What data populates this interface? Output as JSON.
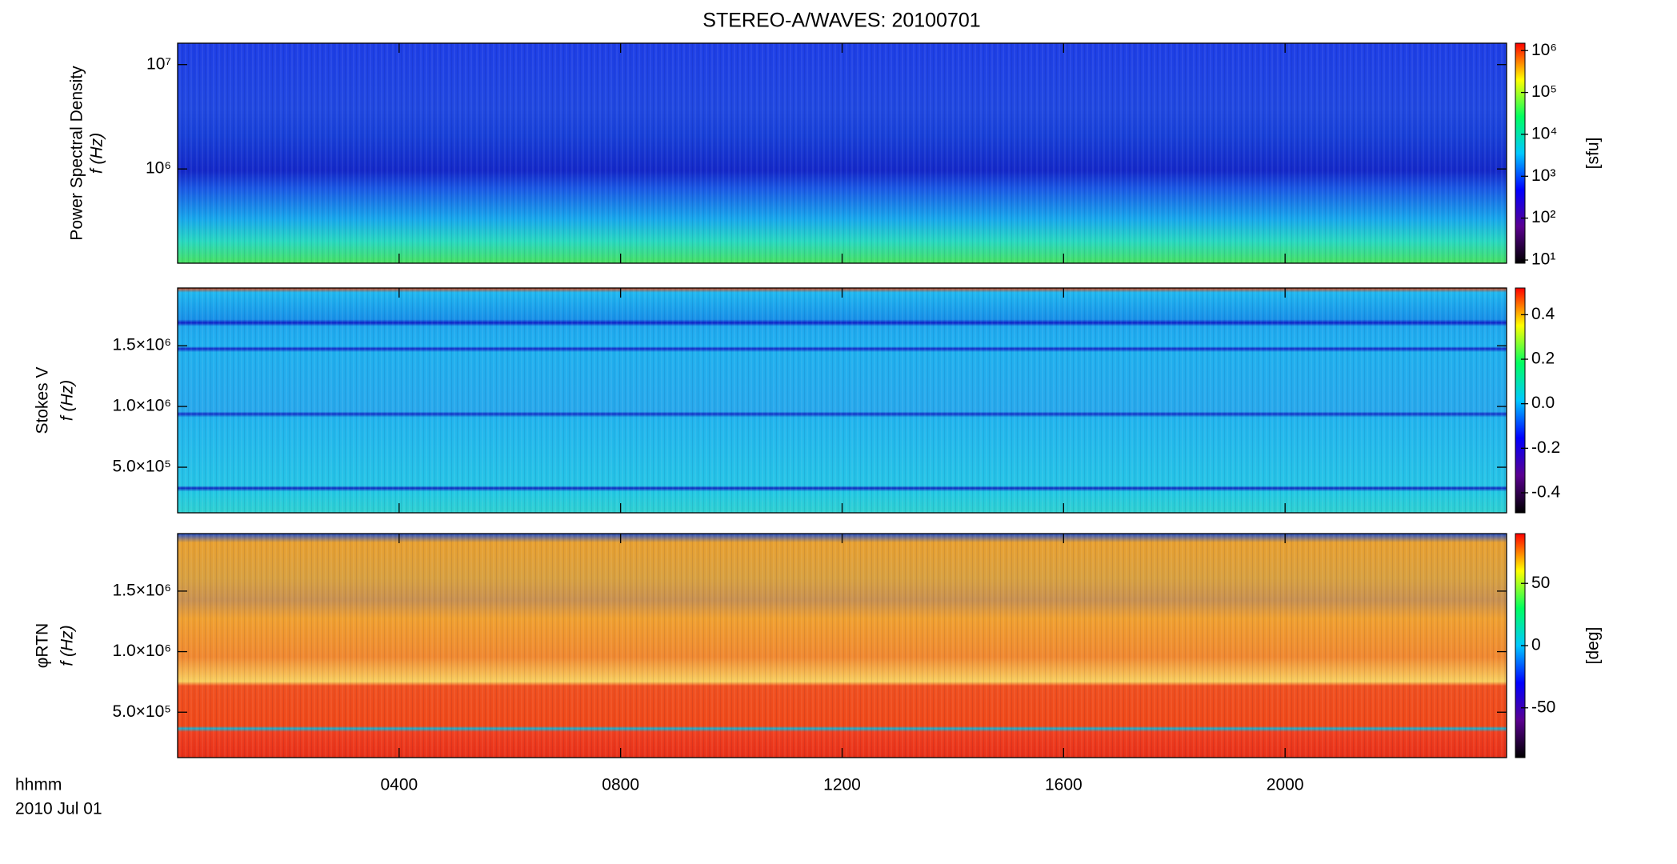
{
  "title": "STEREO-A/WAVES: 20100701",
  "colormap": [
    "#000000",
    "#5a0090",
    "#0000ff",
    "#00c8ff",
    "#00ff60",
    "#ffff00",
    "#ff0000"
  ],
  "x_axis": {
    "lim": [
      0,
      24
    ],
    "ticks": [
      {
        "value": 4,
        "label": "0400"
      },
      {
        "value": 8,
        "label": "0800"
      },
      {
        "value": 12,
        "label": "1200"
      },
      {
        "value": 16,
        "label": "1600"
      },
      {
        "value": 20,
        "label": "2000"
      }
    ],
    "label": [
      "hhmm",
      "2010 Jul 01"
    ]
  },
  "chart_data": [
    {
      "type": "heatmap",
      "ylabel": [
        "Power Spectral Density",
        "f (Hz)"
      ],
      "log_y": true,
      "ylim": [
        125000,
        16025000
      ],
      "yticks": [
        {
          "value": 1000000,
          "label": "10⁶"
        },
        {
          "value": 10000000,
          "label": "10⁷"
        }
      ],
      "colorbar": {
        "log": true,
        "lim": [
          8.4,
          1500000
        ],
        "ticks": [
          {
            "value": 10,
            "label": "10¹"
          },
          {
            "value": 100,
            "label": "10²"
          },
          {
            "value": 1000,
            "label": "10³"
          },
          {
            "value": 10000,
            "label": "10⁴"
          },
          {
            "value": 100000,
            "label": "10⁵"
          },
          {
            "value": 1000000,
            "label": "10⁶"
          }
        ],
        "label": "[sfu]"
      }
    },
    {
      "type": "heatmap",
      "ylabel": [
        "Stokes V",
        "f (Hz)"
      ],
      "log_y": false,
      "ylim": [
        125000,
        1975000
      ],
      "yticks": [
        {
          "value": 500000,
          "label": "5.0×10⁵"
        },
        {
          "value": 1000000,
          "label": "1.0×10⁶"
        },
        {
          "value": 1500000,
          "label": "1.5×10⁶"
        }
      ],
      "colorbar": {
        "log": false,
        "lim": [
          -0.49,
          0.52
        ],
        "ticks": [
          {
            "value": -0.4,
            "label": "-0.4"
          },
          {
            "value": -0.2,
            "label": "-0.2"
          },
          {
            "value": 0,
            "label": "0.0"
          },
          {
            "value": 0.2,
            "label": "0.2"
          },
          {
            "value": 0.4,
            "label": "0.4"
          }
        ]
      }
    },
    {
      "type": "heatmap",
      "ylabel": [
        "φRTN",
        "f (Hz)"
      ],
      "log_y": false,
      "ylim": [
        125000,
        1975000
      ],
      "yticks": [
        {
          "value": 500000,
          "label": "5.0×10⁵"
        },
        {
          "value": 1000000,
          "label": "1.0×10⁶"
        },
        {
          "value": 1500000,
          "label": "1.5×10⁶"
        }
      ],
      "colorbar": {
        "log": false,
        "lim": [
          -90,
          90
        ],
        "ticks": [
          {
            "value": -50,
            "label": "-50"
          },
          {
            "value": 0,
            "label": "0"
          },
          {
            "value": 50,
            "label": "50"
          }
        ],
        "label": "[deg]"
      }
    }
  ]
}
